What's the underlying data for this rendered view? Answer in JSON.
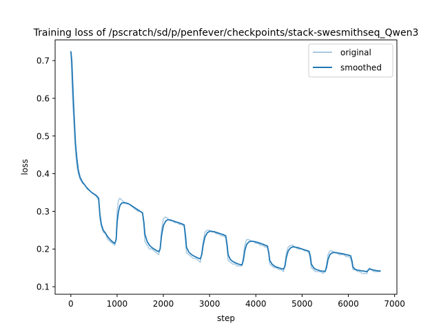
{
  "chart_data": {
    "type": "line",
    "title": "Training loss of /pscratch/sd/p/penfever/checkpoints/stack-swesmithseq_Qwen3",
    "xlabel": "step",
    "ylabel": "loss",
    "xlim": [
      -340,
      7050
    ],
    "ylim": [
      0.08,
      0.755
    ],
    "xticks": [
      0,
      1000,
      2000,
      3000,
      4000,
      5000,
      6000,
      7000
    ],
    "xticklabels": [
      "0",
      "1000",
      "2000",
      "3000",
      "4000",
      "5000",
      "6000",
      "7000"
    ],
    "yticks": [
      0.1,
      0.2,
      0.3,
      0.4,
      0.5,
      0.6,
      0.7
    ],
    "yticklabels": [
      "0.1",
      "0.2",
      "0.3",
      "0.4",
      "0.5",
      "0.6",
      "0.7"
    ],
    "grid": false,
    "legend_position": "top-right",
    "legend": [
      "original",
      "smoothed"
    ],
    "series": [
      {
        "name": "original",
        "color": "#a6c8e0",
        "x": [
          0,
          20,
          40,
          60,
          80,
          100,
          130,
          160,
          200,
          250,
          300,
          350,
          400,
          450,
          500,
          550,
          600,
          630,
          660,
          700,
          750,
          800,
          850,
          900,
          950,
          980,
          1000,
          1030,
          1060,
          1100,
          1150,
          1200,
          1250,
          1300,
          1350,
          1400,
          1450,
          1500,
          1550,
          1580,
          1600,
          1650,
          1700,
          1750,
          1800,
          1850,
          1900,
          1930,
          1960,
          2000,
          2050,
          2100,
          2150,
          2200,
          2250,
          2300,
          2350,
          2400,
          2450,
          2480,
          2500,
          2550,
          2600,
          2650,
          2700,
          2750,
          2800,
          2830,
          2860,
          2900,
          2950,
          3000,
          3050,
          3100,
          3150,
          3200,
          3250,
          3300,
          3350,
          3380,
          3400,
          3450,
          3500,
          3550,
          3600,
          3650,
          3700,
          3730,
          3760,
          3800,
          3850,
          3900,
          3950,
          4000,
          4050,
          4100,
          4150,
          4200,
          4250,
          4280,
          4300,
          4350,
          4400,
          4450,
          4500,
          4550,
          4600,
          4630,
          4660,
          4700,
          4750,
          4800,
          4850,
          4900,
          4950,
          5000,
          5050,
          5100,
          5150,
          5180,
          5200,
          5250,
          5300,
          5350,
          5400,
          5450,
          5500,
          5530,
          5560,
          5600,
          5650,
          5700,
          5750,
          5800,
          5850,
          5900,
          5950,
          6000,
          6050,
          6080,
          6100,
          6150,
          6200,
          6250,
          6300,
          6350,
          6400,
          6430,
          6460,
          6500,
          6550,
          6600,
          6650,
          6700
        ],
        "values": [
          0.72,
          0.66,
          0.59,
          0.55,
          0.5,
          0.46,
          0.42,
          0.4,
          0.385,
          0.375,
          0.37,
          0.36,
          0.355,
          0.35,
          0.345,
          0.34,
          0.33,
          0.28,
          0.26,
          0.245,
          0.24,
          0.225,
          0.22,
          0.215,
          0.21,
          0.23,
          0.3,
          0.33,
          0.335,
          0.33,
          0.325,
          0.32,
          0.32,
          0.315,
          0.31,
          0.305,
          0.3,
          0.3,
          0.295,
          0.26,
          0.22,
          0.21,
          0.2,
          0.2,
          0.195,
          0.19,
          0.185,
          0.2,
          0.25,
          0.28,
          0.285,
          0.28,
          0.275,
          0.275,
          0.27,
          0.27,
          0.265,
          0.265,
          0.26,
          0.22,
          0.19,
          0.185,
          0.18,
          0.175,
          0.175,
          0.17,
          0.165,
          0.19,
          0.22,
          0.245,
          0.25,
          0.25,
          0.245,
          0.245,
          0.24,
          0.24,
          0.235,
          0.235,
          0.23,
          0.2,
          0.17,
          0.165,
          0.16,
          0.16,
          0.155,
          0.155,
          0.155,
          0.18,
          0.21,
          0.225,
          0.225,
          0.22,
          0.22,
          0.215,
          0.215,
          0.21,
          0.21,
          0.205,
          0.205,
          0.185,
          0.16,
          0.155,
          0.15,
          0.15,
          0.145,
          0.145,
          0.14,
          0.16,
          0.19,
          0.205,
          0.21,
          0.21,
          0.205,
          0.2,
          0.2,
          0.2,
          0.195,
          0.195,
          0.19,
          0.17,
          0.15,
          0.145,
          0.14,
          0.14,
          0.14,
          0.135,
          0.14,
          0.16,
          0.185,
          0.195,
          0.195,
          0.19,
          0.19,
          0.185,
          0.185,
          0.185,
          0.18,
          0.18,
          0.175,
          0.16,
          0.145,
          0.145,
          0.14,
          0.14,
          0.135,
          0.135,
          0.135,
          0.145,
          0.15,
          0.145,
          0.14,
          0.14,
          0.14,
          0.14
        ]
      },
      {
        "name": "smoothed",
        "color": "#1f77b4",
        "x": [
          0,
          20,
          40,
          60,
          80,
          100,
          130,
          160,
          200,
          250,
          300,
          350,
          400,
          450,
          500,
          550,
          600,
          630,
          660,
          700,
          750,
          800,
          850,
          900,
          950,
          980,
          1000,
          1030,
          1060,
          1100,
          1150,
          1200,
          1250,
          1300,
          1350,
          1400,
          1450,
          1500,
          1550,
          1580,
          1600,
          1650,
          1700,
          1750,
          1800,
          1850,
          1900,
          1930,
          1960,
          2000,
          2050,
          2100,
          2150,
          2200,
          2250,
          2300,
          2350,
          2400,
          2450,
          2480,
          2500,
          2550,
          2600,
          2650,
          2700,
          2750,
          2800,
          2830,
          2860,
          2900,
          2950,
          3000,
          3050,
          3100,
          3150,
          3200,
          3250,
          3300,
          3350,
          3380,
          3400,
          3450,
          3500,
          3550,
          3600,
          3650,
          3700,
          3730,
          3760,
          3800,
          3850,
          3900,
          3950,
          4000,
          4050,
          4100,
          4150,
          4200,
          4250,
          4280,
          4300,
          4350,
          4400,
          4450,
          4500,
          4550,
          4600,
          4630,
          4660,
          4700,
          4750,
          4800,
          4850,
          4900,
          4950,
          5000,
          5050,
          5100,
          5150,
          5180,
          5200,
          5250,
          5300,
          5350,
          5400,
          5450,
          5500,
          5530,
          5560,
          5600,
          5650,
          5700,
          5750,
          5800,
          5850,
          5900,
          5950,
          6000,
          6050,
          6080,
          6100,
          6150,
          6200,
          6250,
          6300,
          6350,
          6400,
          6430,
          6460,
          6500,
          6550,
          6600,
          6650,
          6700
        ],
        "values": [
          0.725,
          0.7,
          0.64,
          0.58,
          0.53,
          0.48,
          0.44,
          0.41,
          0.39,
          0.378,
          0.37,
          0.362,
          0.356,
          0.35,
          0.346,
          0.342,
          0.335,
          0.29,
          0.265,
          0.25,
          0.242,
          0.232,
          0.225,
          0.219,
          0.215,
          0.225,
          0.27,
          0.3,
          0.315,
          0.322,
          0.323,
          0.322,
          0.32,
          0.316,
          0.312,
          0.308,
          0.304,
          0.3,
          0.296,
          0.27,
          0.24,
          0.22,
          0.21,
          0.204,
          0.2,
          0.196,
          0.193,
          0.2,
          0.235,
          0.262,
          0.274,
          0.278,
          0.277,
          0.275,
          0.273,
          0.271,
          0.269,
          0.267,
          0.264,
          0.235,
          0.205,
          0.192,
          0.186,
          0.182,
          0.179,
          0.176,
          0.174,
          0.185,
          0.21,
          0.232,
          0.243,
          0.247,
          0.247,
          0.246,
          0.244,
          0.242,
          0.24,
          0.238,
          0.235,
          0.21,
          0.185,
          0.172,
          0.167,
          0.164,
          0.161,
          0.159,
          0.158,
          0.17,
          0.195,
          0.212,
          0.219,
          0.221,
          0.22,
          0.219,
          0.217,
          0.215,
          0.213,
          0.21,
          0.208,
          0.19,
          0.17,
          0.16,
          0.155,
          0.152,
          0.15,
          0.148,
          0.147,
          0.155,
          0.178,
          0.195,
          0.203,
          0.206,
          0.205,
          0.204,
          0.202,
          0.2,
          0.198,
          0.196,
          0.194,
          0.18,
          0.16,
          0.15,
          0.146,
          0.144,
          0.142,
          0.141,
          0.141,
          0.152,
          0.172,
          0.185,
          0.19,
          0.191,
          0.19,
          0.189,
          0.188,
          0.187,
          0.185,
          0.184,
          0.182,
          0.168,
          0.152,
          0.146,
          0.144,
          0.143,
          0.142,
          0.141,
          0.14,
          0.144,
          0.147,
          0.146,
          0.144,
          0.143,
          0.142,
          0.142
        ]
      }
    ]
  }
}
